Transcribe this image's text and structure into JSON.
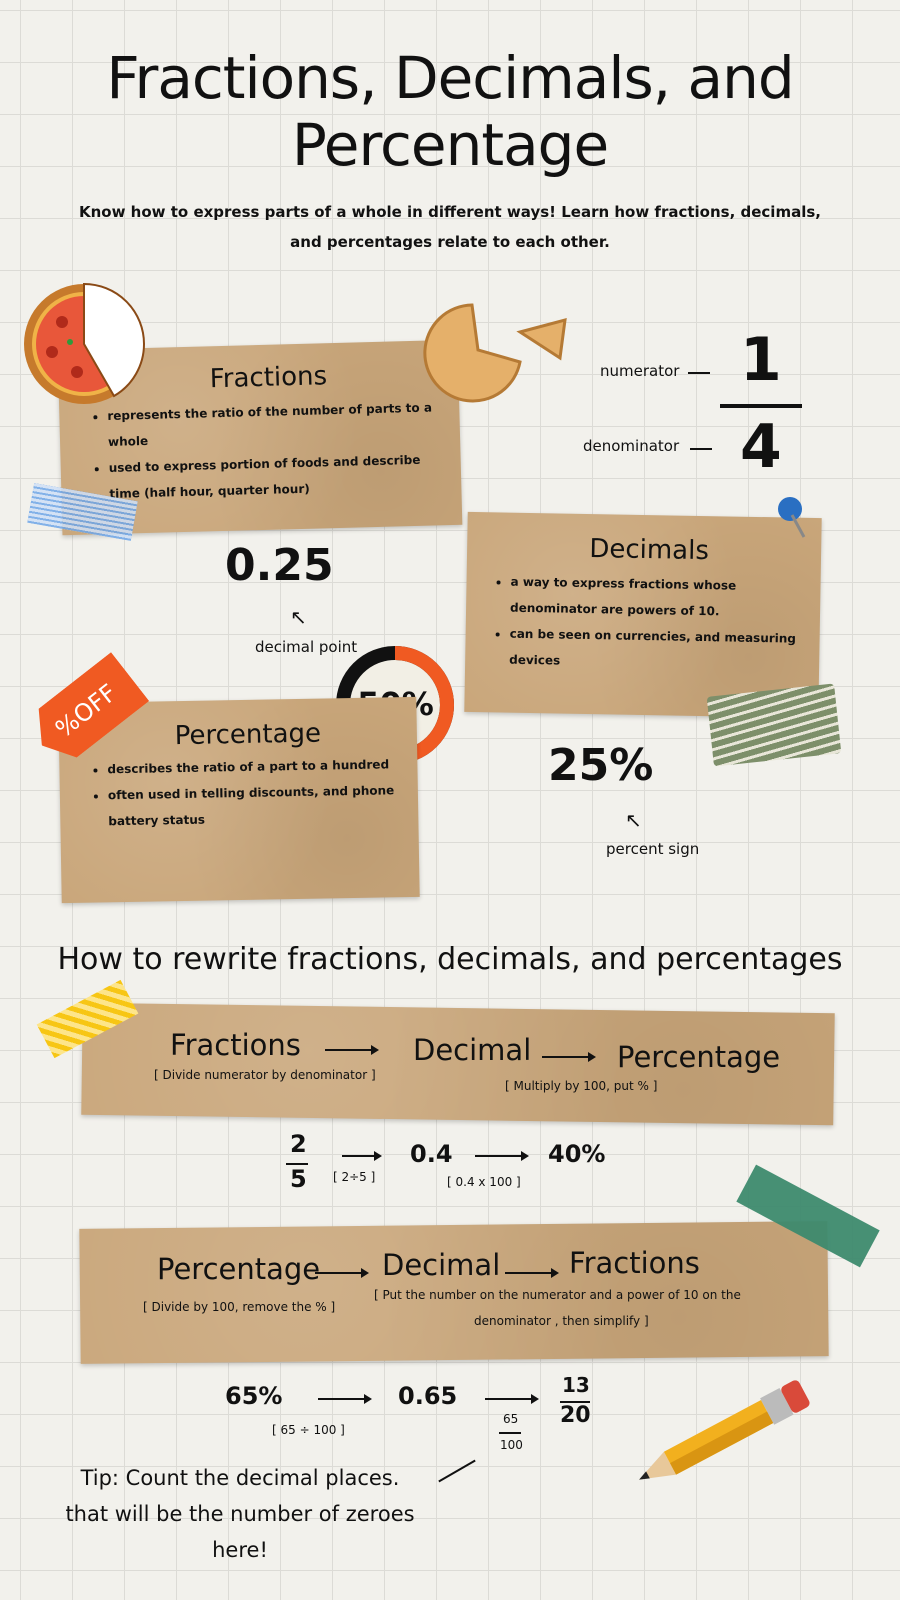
{
  "title": {
    "line1": "Fractions, Decimals, and",
    "line2": "Percentage"
  },
  "subtitle": {
    "line1": "Know how to express parts of a whole in different ways! Learn how fractions, decimals,",
    "line2": "and percentages relate to each other."
  },
  "fractions": {
    "title": "Fractions",
    "bullets": [
      "represents the ratio of the number of parts to a whole",
      "used to express portion of foods and describe time (half hour, quarter hour)"
    ]
  },
  "fraction_example": {
    "numerator_label": "numerator",
    "denominator_label": "denominator",
    "numerator": "1",
    "denominator": "4"
  },
  "decimal_example": {
    "value": "0.25",
    "label": "decimal point"
  },
  "decimals": {
    "title": "Decimals",
    "bullets": [
      "a way to express fractions whose denominator are powers of 10.",
      "can be seen on currencies, and measuring devices"
    ]
  },
  "badge": {
    "value": "50%",
    "fill_percent": 50,
    "colors": {
      "filled": "#f05a22",
      "empty": "#111111"
    }
  },
  "tag": {
    "text": "%OFF",
    "color": "#f05a22"
  },
  "percentage": {
    "title": "Percentage",
    "bullets": [
      "describes the ratio of a part to a hundred",
      "often used in telling discounts, and phone battery status"
    ]
  },
  "percent_example": {
    "value": "25%",
    "label": "percent sign"
  },
  "rewrite": {
    "heading": "How to rewrite fractions, decimals, and percentages",
    "flow1": {
      "a": "Fractions",
      "b": "Decimal",
      "c": "Percentage",
      "note1": "[ Divide numerator by denominator ]",
      "note2": "[ Multiply by 100, put % ]"
    },
    "ex1": {
      "num": "2",
      "den": "5",
      "step1": "[ 2÷5 ]",
      "dec": "0.4",
      "step2": "[ 0.4 x 100 ]",
      "pct": "40%"
    },
    "flow2": {
      "a": "Percentage",
      "b": "Decimal",
      "c": "Fractions",
      "note1": "[ Divide by 100, remove the % ]",
      "note2a": "[ Put the number on the numerator and a power of 10 on the",
      "note2b": "denominator , then simplify ]"
    },
    "ex2": {
      "pct": "65%",
      "step1": "[ 65 ÷ 100 ]",
      "dec": "0.65",
      "mid_num": "65",
      "mid_den": "100",
      "num": "13",
      "den": "20"
    },
    "tip": {
      "line1": "Tip: Count the decimal places.",
      "line2": "that will be the number of zeroes",
      "line3": "here!"
    }
  },
  "colors": {
    "kraft": "#c9a67a",
    "background": "#f2f1ec",
    "accent": "#f05a22"
  }
}
